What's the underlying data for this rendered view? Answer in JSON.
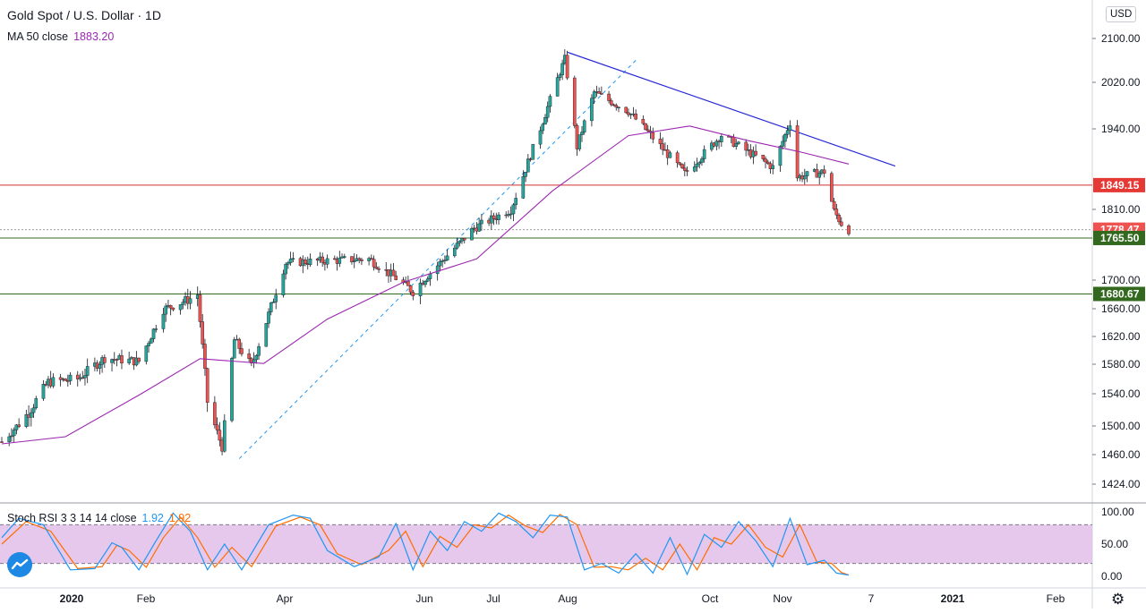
{
  "header": {
    "title": "Gold Spot / U.S. Dollar · 1D",
    "ma_label": "MA 50 close",
    "ma_value": "1883.20",
    "currency": "USD"
  },
  "indicator": {
    "label": "Stoch RSI 3 3 14 14 close",
    "k_value": "1.92",
    "d_value": "1.92",
    "upper_band": 80,
    "lower_band": 20,
    "axis_ticks": [
      "100.00",
      "50.00",
      "0.00"
    ]
  },
  "colors": {
    "up": "#26a69a",
    "down": "#ef5350",
    "ma": "#9c27b0",
    "trendline": "#2a2ad6",
    "dashed_trend": "#2196f3",
    "resistance": "#d32f2f",
    "support": "#33691e",
    "band_fill": "#e1bee7"
  },
  "chart_data": {
    "type": "candlestick",
    "title": "Gold Spot / U.S. Dollar · 1D",
    "ylim": [
      1400,
      2130
    ],
    "y_ticks": [
      "1424.00",
      "1460.00",
      "1500.00",
      "1540.00",
      "1580.00",
      "1620.00",
      "1660.00",
      "1700.00",
      "1810.00",
      "1940.00",
      "2020.00",
      "2100.00"
    ],
    "x_ticks": [
      "2020",
      "Feb",
      "Apr",
      "Jun",
      "Jul",
      "Aug",
      "Oct",
      "Nov",
      "7",
      "2021",
      "Feb"
    ],
    "price_labels": [
      {
        "text": "1849.15",
        "value": 1849.15,
        "kind": "resistance"
      },
      {
        "text": "1778.47",
        "value": 1778.47,
        "kind": "last"
      },
      {
        "text": "1765.50",
        "value": 1765.5,
        "kind": "support"
      },
      {
        "text": "1680.67",
        "value": 1680.67,
        "kind": "support"
      }
    ],
    "close_series": [
      {
        "date": "2019-12-20",
        "close": 1478
      },
      {
        "date": "2019-12-31",
        "close": 1517
      },
      {
        "date": "2020-01-08",
        "close": 1556
      },
      {
        "date": "2020-01-20",
        "close": 1560
      },
      {
        "date": "2020-01-31",
        "close": 1589
      },
      {
        "date": "2020-02-14",
        "close": 1584
      },
      {
        "date": "2020-02-24",
        "close": 1659
      },
      {
        "date": "2020-03-06",
        "close": 1674
      },
      {
        "date": "2020-03-09",
        "close": 1680
      },
      {
        "date": "2020-03-13",
        "close": 1530
      },
      {
        "date": "2020-03-19",
        "close": 1471
      },
      {
        "date": "2020-03-24",
        "close": 1615
      },
      {
        "date": "2020-03-31",
        "close": 1577
      },
      {
        "date": "2020-04-14",
        "close": 1727
      },
      {
        "date": "2020-04-24",
        "close": 1729
      },
      {
        "date": "2020-05-18",
        "close": 1733
      },
      {
        "date": "2020-06-05",
        "close": 1684
      },
      {
        "date": "2020-06-30",
        "close": 1781
      },
      {
        "date": "2020-07-15",
        "close": 1810
      },
      {
        "date": "2020-07-27",
        "close": 1941
      },
      {
        "date": "2020-08-06",
        "close": 2063
      },
      {
        "date": "2020-08-11",
        "close": 1911
      },
      {
        "date": "2020-08-18",
        "close": 2003
      },
      {
        "date": "2020-09-01",
        "close": 1970
      },
      {
        "date": "2020-09-24",
        "close": 1868
      },
      {
        "date": "2020-10-09",
        "close": 1930
      },
      {
        "date": "2020-10-30",
        "close": 1878
      },
      {
        "date": "2020-11-06",
        "close": 1951
      },
      {
        "date": "2020-11-09",
        "close": 1862
      },
      {
        "date": "2020-11-20",
        "close": 1871
      },
      {
        "date": "2020-11-24",
        "close": 1807
      },
      {
        "date": "2020-11-27",
        "close": 1788
      },
      {
        "date": "2020-11-30",
        "close": 1778.47
      }
    ],
    "ma_series": [
      {
        "date": "2019-12-20",
        "value": 1475
      },
      {
        "date": "2020-01-15",
        "value": 1485
      },
      {
        "date": "2020-02-15",
        "value": 1540
      },
      {
        "date": "2020-03-10",
        "value": 1588
      },
      {
        "date": "2020-04-05",
        "value": 1581
      },
      {
        "date": "2020-05-01",
        "value": 1645
      },
      {
        "date": "2020-06-01",
        "value": 1697
      },
      {
        "date": "2020-07-01",
        "value": 1733
      },
      {
        "date": "2020-08-01",
        "value": 1840
      },
      {
        "date": "2020-09-01",
        "value": 1929
      },
      {
        "date": "2020-09-26",
        "value": 1945
      },
      {
        "date": "2020-10-20",
        "value": 1921
      },
      {
        "date": "2020-11-10",
        "value": 1903
      },
      {
        "date": "2020-11-30",
        "value": 1883.2
      }
    ],
    "trendline": {
      "from": {
        "date": "2020-08-07",
        "value": 2075
      },
      "to": {
        "date": "2020-12-19",
        "value": 1880
      }
    },
    "dashed_trendline": {
      "from": {
        "date": "2020-03-26",
        "value": 1455
      },
      "to": {
        "date": "2020-09-04",
        "value": 2060
      }
    },
    "stoch_rsi": {
      "ylim": [
        0,
        100
      ],
      "k": [
        {
          "date": "2019-12-20",
          "value": 60
        },
        {
          "date": "2019-12-27",
          "value": 90
        },
        {
          "date": "2020-01-06",
          "value": 80
        },
        {
          "date": "2020-01-17",
          "value": 10
        },
        {
          "date": "2020-01-27",
          "value": 12
        },
        {
          "date": "2020-02-03",
          "value": 52
        },
        {
          "date": "2020-02-07",
          "value": 45
        },
        {
          "date": "2020-02-14",
          "value": 10
        },
        {
          "date": "2020-02-21",
          "value": 55
        },
        {
          "date": "2020-02-28",
          "value": 98
        },
        {
          "date": "2020-03-06",
          "value": 70
        },
        {
          "date": "2020-03-13",
          "value": 10
        },
        {
          "date": "2020-03-20",
          "value": 50
        },
        {
          "date": "2020-03-27",
          "value": 10
        },
        {
          "date": "2020-04-07",
          "value": 80
        },
        {
          "date": "2020-04-17",
          "value": 95
        },
        {
          "date": "2020-04-24",
          "value": 90
        },
        {
          "date": "2020-05-01",
          "value": 40
        },
        {
          "date": "2020-05-12",
          "value": 15
        },
        {
          "date": "2020-05-22",
          "value": 30
        },
        {
          "date": "2020-05-29",
          "value": 82
        },
        {
          "date": "2020-06-05",
          "value": 10
        },
        {
          "date": "2020-06-12",
          "value": 70
        },
        {
          "date": "2020-06-19",
          "value": 40
        },
        {
          "date": "2020-06-26",
          "value": 85
        },
        {
          "date": "2020-07-03",
          "value": 70
        },
        {
          "date": "2020-07-10",
          "value": 98
        },
        {
          "date": "2020-07-17",
          "value": 85
        },
        {
          "date": "2020-07-24",
          "value": 60
        },
        {
          "date": "2020-07-31",
          "value": 95
        },
        {
          "date": "2020-08-07",
          "value": 92
        },
        {
          "date": "2020-08-14",
          "value": 10
        },
        {
          "date": "2020-08-21",
          "value": 20
        },
        {
          "date": "2020-08-28",
          "value": 5
        },
        {
          "date": "2020-09-04",
          "value": 35
        },
        {
          "date": "2020-09-11",
          "value": 5
        },
        {
          "date": "2020-09-18",
          "value": 60
        },
        {
          "date": "2020-09-25",
          "value": 3
        },
        {
          "date": "2020-10-02",
          "value": 65
        },
        {
          "date": "2020-10-09",
          "value": 45
        },
        {
          "date": "2020-10-16",
          "value": 85
        },
        {
          "date": "2020-10-23",
          "value": 55
        },
        {
          "date": "2020-10-30",
          "value": 15
        },
        {
          "date": "2020-11-06",
          "value": 90
        },
        {
          "date": "2020-11-13",
          "value": 18
        },
        {
          "date": "2020-11-20",
          "value": 25
        },
        {
          "date": "2020-11-25",
          "value": 5
        },
        {
          "date": "2020-11-30",
          "value": 1.92
        }
      ],
      "d": [
        {
          "date": "2019-12-20",
          "value": 50
        },
        {
          "date": "2019-12-30",
          "value": 85
        },
        {
          "date": "2020-01-09",
          "value": 70
        },
        {
          "date": "2020-01-20",
          "value": 12
        },
        {
          "date": "2020-01-30",
          "value": 15
        },
        {
          "date": "2020-02-05",
          "value": 48
        },
        {
          "date": "2020-02-10",
          "value": 40
        },
        {
          "date": "2020-02-17",
          "value": 14
        },
        {
          "date": "2020-02-24",
          "value": 60
        },
        {
          "date": "2020-03-02",
          "value": 92
        },
        {
          "date": "2020-03-09",
          "value": 60
        },
        {
          "date": "2020-03-16",
          "value": 14
        },
        {
          "date": "2020-03-23",
          "value": 45
        },
        {
          "date": "2020-03-31",
          "value": 15
        },
        {
          "date": "2020-04-10",
          "value": 78
        },
        {
          "date": "2020-04-20",
          "value": 92
        },
        {
          "date": "2020-04-28",
          "value": 80
        },
        {
          "date": "2020-05-05",
          "value": 35
        },
        {
          "date": "2020-05-15",
          "value": 18
        },
        {
          "date": "2020-05-26",
          "value": 40
        },
        {
          "date": "2020-06-02",
          "value": 70
        },
        {
          "date": "2020-06-09",
          "value": 15
        },
        {
          "date": "2020-06-16",
          "value": 62
        },
        {
          "date": "2020-06-23",
          "value": 45
        },
        {
          "date": "2020-06-30",
          "value": 80
        },
        {
          "date": "2020-07-07",
          "value": 75
        },
        {
          "date": "2020-07-14",
          "value": 95
        },
        {
          "date": "2020-07-21",
          "value": 78
        },
        {
          "date": "2020-07-28",
          "value": 68
        },
        {
          "date": "2020-08-04",
          "value": 96
        },
        {
          "date": "2020-08-11",
          "value": 80
        },
        {
          "date": "2020-08-18",
          "value": 14
        },
        {
          "date": "2020-08-25",
          "value": 15
        },
        {
          "date": "2020-09-01",
          "value": 10
        },
        {
          "date": "2020-09-08",
          "value": 28
        },
        {
          "date": "2020-09-15",
          "value": 10
        },
        {
          "date": "2020-09-22",
          "value": 50
        },
        {
          "date": "2020-09-29",
          "value": 10
        },
        {
          "date": "2020-10-06",
          "value": 60
        },
        {
          "date": "2020-10-13",
          "value": 50
        },
        {
          "date": "2020-10-20",
          "value": 80
        },
        {
          "date": "2020-10-27",
          "value": 45
        },
        {
          "date": "2020-11-03",
          "value": 30
        },
        {
          "date": "2020-11-10",
          "value": 80
        },
        {
          "date": "2020-11-17",
          "value": 22
        },
        {
          "date": "2020-11-23",
          "value": 20
        },
        {
          "date": "2020-11-27",
          "value": 6
        },
        {
          "date": "2020-11-30",
          "value": 1.92
        }
      ]
    }
  }
}
